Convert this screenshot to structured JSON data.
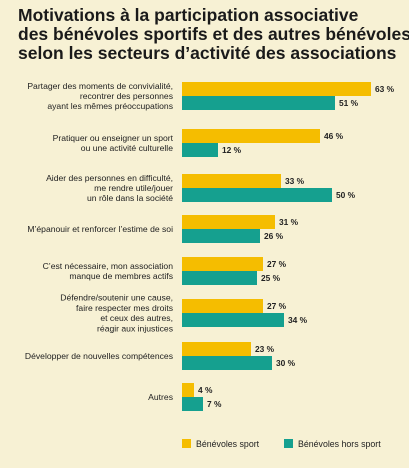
{
  "title_lines": [
    "Motivations à la participation associative",
    "des bénévoles sportifs et des autres bénévoles",
    "selon les secteurs d’activité des associations"
  ],
  "colors": {
    "background": "#f7f1d4",
    "sport": "#f5bd00",
    "hors_sport": "#15a08f",
    "text": "#222222"
  },
  "chart_data": {
    "type": "bar",
    "orientation": "horizontal",
    "categories": [
      [
        "Partager des moments de convivialité,",
        "recontrer des personnes",
        "ayant les mêmes préoccupations"
      ],
      [
        "Pratiquer ou enseigner un sport",
        "ou une activité culturelle"
      ],
      [
        "Aider des personnes en difficulté,",
        "me rendre utile/jouer",
        "un rôle dans la société"
      ],
      [
        "M’épanouir et renforcer l’estime de soi"
      ],
      [
        "C’est nécessaire, mon association",
        "manque de membres actifs"
      ],
      [
        "Défendre/soutenir une cause,",
        "faire respecter mes droits",
        "et ceux des autres,",
        "réagir aux injustices"
      ],
      [
        "Développer de nouvelles compétences"
      ],
      [
        "Autres"
      ]
    ],
    "series": [
      {
        "name": "Bénévoles sport",
        "color": "#f5bd00",
        "values": [
          63,
          46,
          33,
          31,
          27,
          27,
          23,
          4
        ],
        "labels": [
          "63 %",
          "46 %",
          "33 %",
          "31 %",
          "27 %",
          "27 %",
          "23 %",
          "4 %"
        ]
      },
      {
        "name": "Bénévoles hors sport",
        "color": "#15a08f",
        "values": [
          51,
          12,
          50,
          26,
          25,
          34,
          30,
          7
        ],
        "labels": [
          "51 %",
          "12 %",
          "50 %",
          "26 %",
          "25 %",
          "34 %",
          "30 %",
          "7 %"
        ]
      }
    ],
    "xlim": [
      0,
      63
    ],
    "grid": false,
    "legend": "bottom"
  }
}
